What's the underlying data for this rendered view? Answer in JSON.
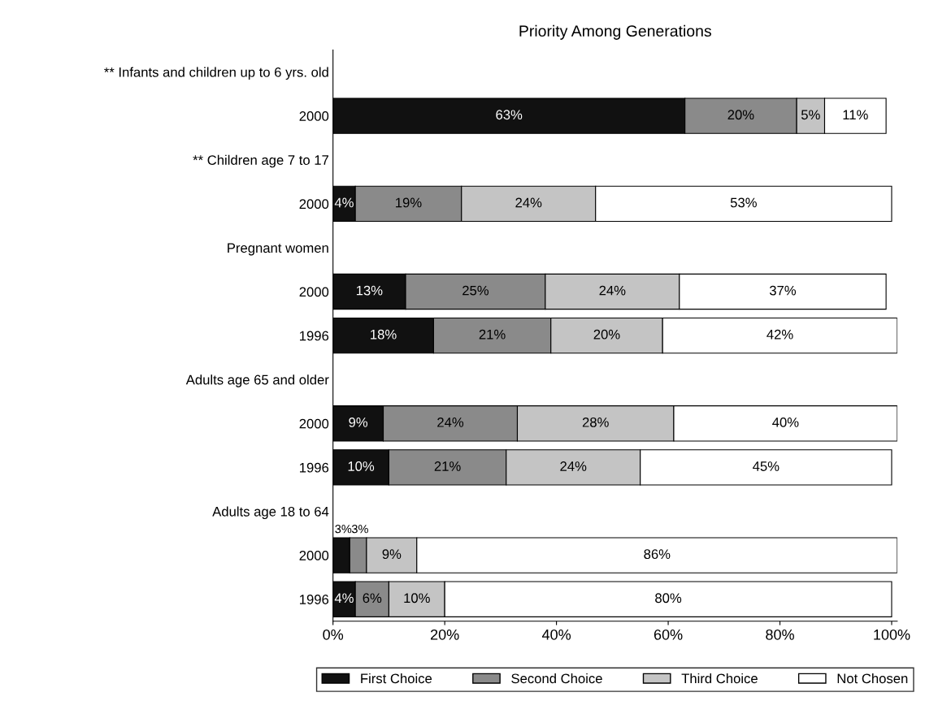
{
  "chart_data": {
    "type": "bar",
    "orientation": "horizontal",
    "stacked": true,
    "title": "Priority Among Generations",
    "categories": [
      "** Infants and children up to 6 yrs. old",
      "2000",
      "** Children age 7 to 17",
      "2000",
      "Pregnant women",
      "2000",
      "1996",
      "Adults age 65 and older",
      "2000",
      "1996",
      "Adults age 18 to 64",
      "2000",
      "1996"
    ],
    "series": [
      {
        "name": "First Choice",
        "color": "#111111",
        "values": [
          null,
          63,
          null,
          4,
          null,
          13,
          18,
          null,
          9,
          10,
          null,
          3,
          4
        ],
        "value_labels": [
          null,
          "63%",
          null,
          "4%",
          null,
          "13%",
          "18%",
          null,
          "9%",
          "10%",
          null,
          "3%",
          "4%"
        ]
      },
      {
        "name": "Second Choice",
        "color": "#8a8a8a",
        "values": [
          null,
          20,
          null,
          19,
          null,
          25,
          21,
          null,
          24,
          21,
          null,
          3,
          6
        ],
        "value_labels": [
          null,
          "20%",
          null,
          "19%",
          null,
          "25%",
          "21%",
          null,
          "24%",
          "21%",
          null,
          "3%",
          "6%"
        ]
      },
      {
        "name": "Third Choice",
        "color": "#c4c4c4",
        "values": [
          null,
          5,
          null,
          24,
          null,
          24,
          20,
          null,
          28,
          24,
          null,
          9,
          10
        ],
        "value_labels": [
          null,
          "5%",
          null,
          "24%",
          null,
          "24%",
          "20%",
          null,
          "28%",
          "24%",
          null,
          "9%",
          "10%"
        ]
      },
      {
        "name": "Not Chosen",
        "color": "#ffffff",
        "values": [
          null,
          11,
          null,
          53,
          null,
          37,
          42,
          null,
          40,
          45,
          null,
          86,
          80
        ],
        "value_labels": [
          null,
          "11%",
          null,
          "53%",
          null,
          "37%",
          "42%",
          null,
          "40%",
          "45%",
          null,
          "86%",
          "80%"
        ]
      }
    ],
    "xlim": [
      0,
      101
    ],
    "xticks": [
      {
        "value": 0,
        "label": "0%"
      },
      {
        "value": 20,
        "label": "20%"
      },
      {
        "value": 40,
        "label": "40%"
      },
      {
        "value": 60,
        "label": "60%"
      },
      {
        "value": 80,
        "label": "80%"
      },
      {
        "value": 100,
        "label": "100%"
      }
    ],
    "grid": false,
    "legend": "bottom"
  }
}
